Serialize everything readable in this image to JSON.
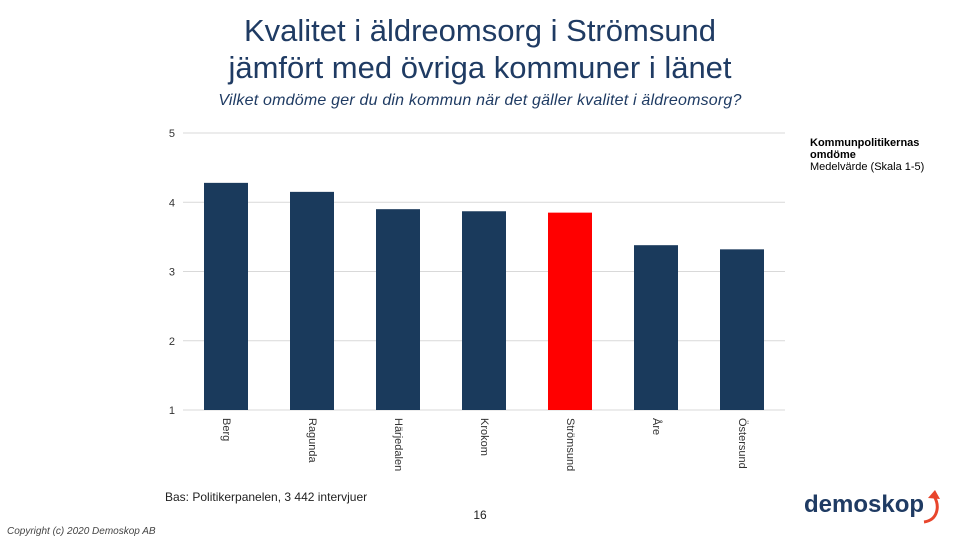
{
  "title_line1": "Kvalitet i äldreomsorg i Strömsund",
  "title_line2": "jämfört med övriga kommuner i länet",
  "subtitle": "Vilket omdöme ger du din kommun när det gäller kvalitet i äldreomsorg?",
  "legend": {
    "line1": "Kommunpolitikernas",
    "line2": "omdöme",
    "line3": "Medelvärde (Skala 1-5)"
  },
  "footer": {
    "bas": "Bas: Politikerpanelen, 3 442 intervjuer",
    "page_number": "16",
    "copyright": "Copyright (c) 2020 Demoskop AB",
    "logo_text": "demoskop"
  },
  "colors": {
    "bar": "#1a3a5c",
    "highlight": "#ff0000",
    "logo_arrow": "#e8452c"
  },
  "chart_data": {
    "type": "bar",
    "categories": [
      "Berg",
      "Ragunda",
      "Härjedalen",
      "Krokom",
      "Strömsund",
      "Åre",
      "Östersund"
    ],
    "values": [
      4.28,
      4.15,
      3.9,
      3.87,
      3.85,
      3.38,
      3.32
    ],
    "highlight_category": "Strömsund",
    "ylim": [
      1,
      5
    ],
    "yticks": [
      1,
      2,
      3,
      4,
      5
    ],
    "grid": true
  }
}
